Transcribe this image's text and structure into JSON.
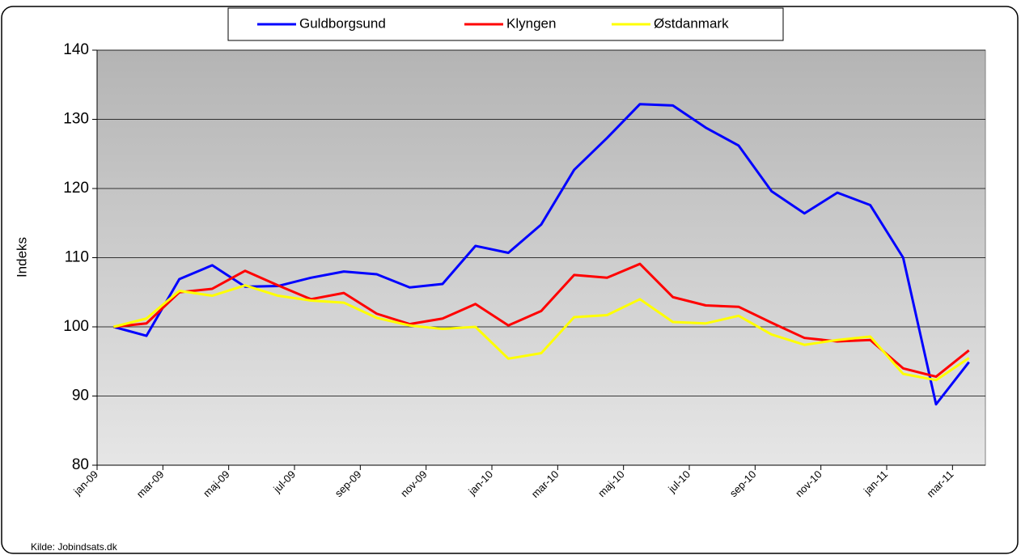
{
  "chart_data": {
    "type": "line",
    "y_label": "Indeks",
    "source": "Kilde: Jobindsats.dk",
    "categories": [
      "jan-09",
      null,
      "mar-09",
      null,
      "maj-09",
      null,
      "jul-09",
      null,
      "sep-09",
      null,
      "nov-09",
      null,
      "jan-10",
      null,
      "mar-10",
      null,
      "maj-10",
      null,
      "jul-10",
      null,
      "sep-10",
      null,
      "nov-10",
      null,
      "jan-11",
      null,
      "mar-11"
    ],
    "series": [
      {
        "name": "Guldborgsund",
        "color": "#0000ff",
        "values": [
          100,
          98.7,
          106.9,
          108.9,
          105.8,
          105.9,
          107.1,
          108,
          107.6,
          105.7,
          106.2,
          111.7,
          110.7,
          114.8,
          122.7,
          127.3,
          132.2,
          132,
          128.8,
          126.2,
          119.6,
          116.4,
          119.4,
          117.6,
          110,
          88.8,
          94.9
        ]
      },
      {
        "name": "Klyngen",
        "color": "#ff0000",
        "values": [
          100,
          100.5,
          105,
          105.5,
          108.1,
          106,
          104,
          104.9,
          101.9,
          100.4,
          101.2,
          103.3,
          100.2,
          102.3,
          107.5,
          107.1,
          109.1,
          104.3,
          103.1,
          102.9,
          100.6,
          98.4,
          97.9,
          98.1,
          94,
          92.8,
          96.6
        ]
      },
      {
        "name": "Østdanmark",
        "color": "#ffff00",
        "values": [
          100,
          101.2,
          105.2,
          104.5,
          106,
          104.5,
          103.8,
          103.5,
          101.3,
          100.2,
          99.7,
          100,
          95.4,
          96.2,
          101.4,
          101.7,
          104,
          100.7,
          100.5,
          101.6,
          98.9,
          97.4,
          98.1,
          98.6,
          93.2,
          92.3,
          95.5
        ]
      }
    ],
    "ylim": [
      80,
      140
    ],
    "yticks": [
      80,
      90,
      100,
      110,
      120,
      130,
      140
    ],
    "grid": true
  }
}
